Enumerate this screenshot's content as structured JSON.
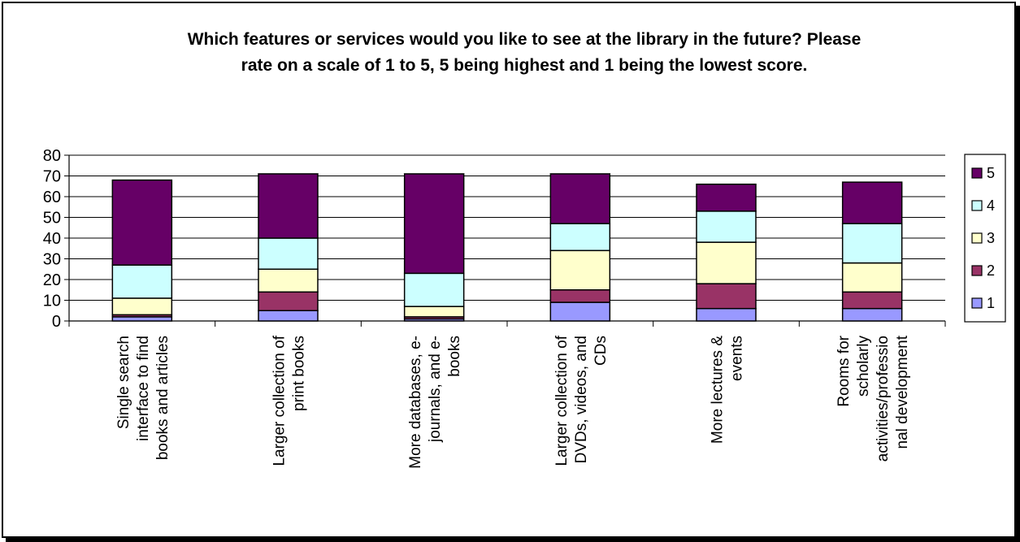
{
  "chart_data": {
    "type": "bar",
    "stacked": true,
    "title_lines": [
      "Which features or services would you like to see at the library in the future? Please",
      "rate on a scale of 1 to 5, 5 being highest and 1 being the lowest score."
    ],
    "categories": [
      [
        "Single search",
        "interface to find",
        "books and articles"
      ],
      [
        "Larger collection of",
        "print books"
      ],
      [
        "More databases, e-",
        "journals, and e-",
        "books"
      ],
      [
        "Larger collection of",
        "DVDs, videos, and",
        "CDs"
      ],
      [
        "More lectures &",
        "events"
      ],
      [
        "Rooms for",
        "scholarly",
        "activities/professio",
        "nal development"
      ]
    ],
    "series": [
      {
        "name": "1",
        "color": "#9999ff",
        "values": [
          2,
          5,
          1,
          9,
          6,
          6
        ]
      },
      {
        "name": "2",
        "color": "#993366",
        "values": [
          1,
          9,
          1,
          6,
          12,
          8
        ]
      },
      {
        "name": "3",
        "color": "#ffffcc",
        "values": [
          8,
          11,
          5,
          19,
          20,
          14
        ]
      },
      {
        "name": "4",
        "color": "#ccffff",
        "values": [
          16,
          15,
          16,
          13,
          15,
          19
        ]
      },
      {
        "name": "5",
        "color": "#660066",
        "values": [
          41,
          31,
          48,
          24,
          13,
          20
        ]
      }
    ],
    "ylim": [
      0,
      80
    ],
    "yticks": [
      0,
      10,
      20,
      30,
      40,
      50,
      60,
      70,
      80
    ],
    "grid": true,
    "legend_position": "right"
  }
}
